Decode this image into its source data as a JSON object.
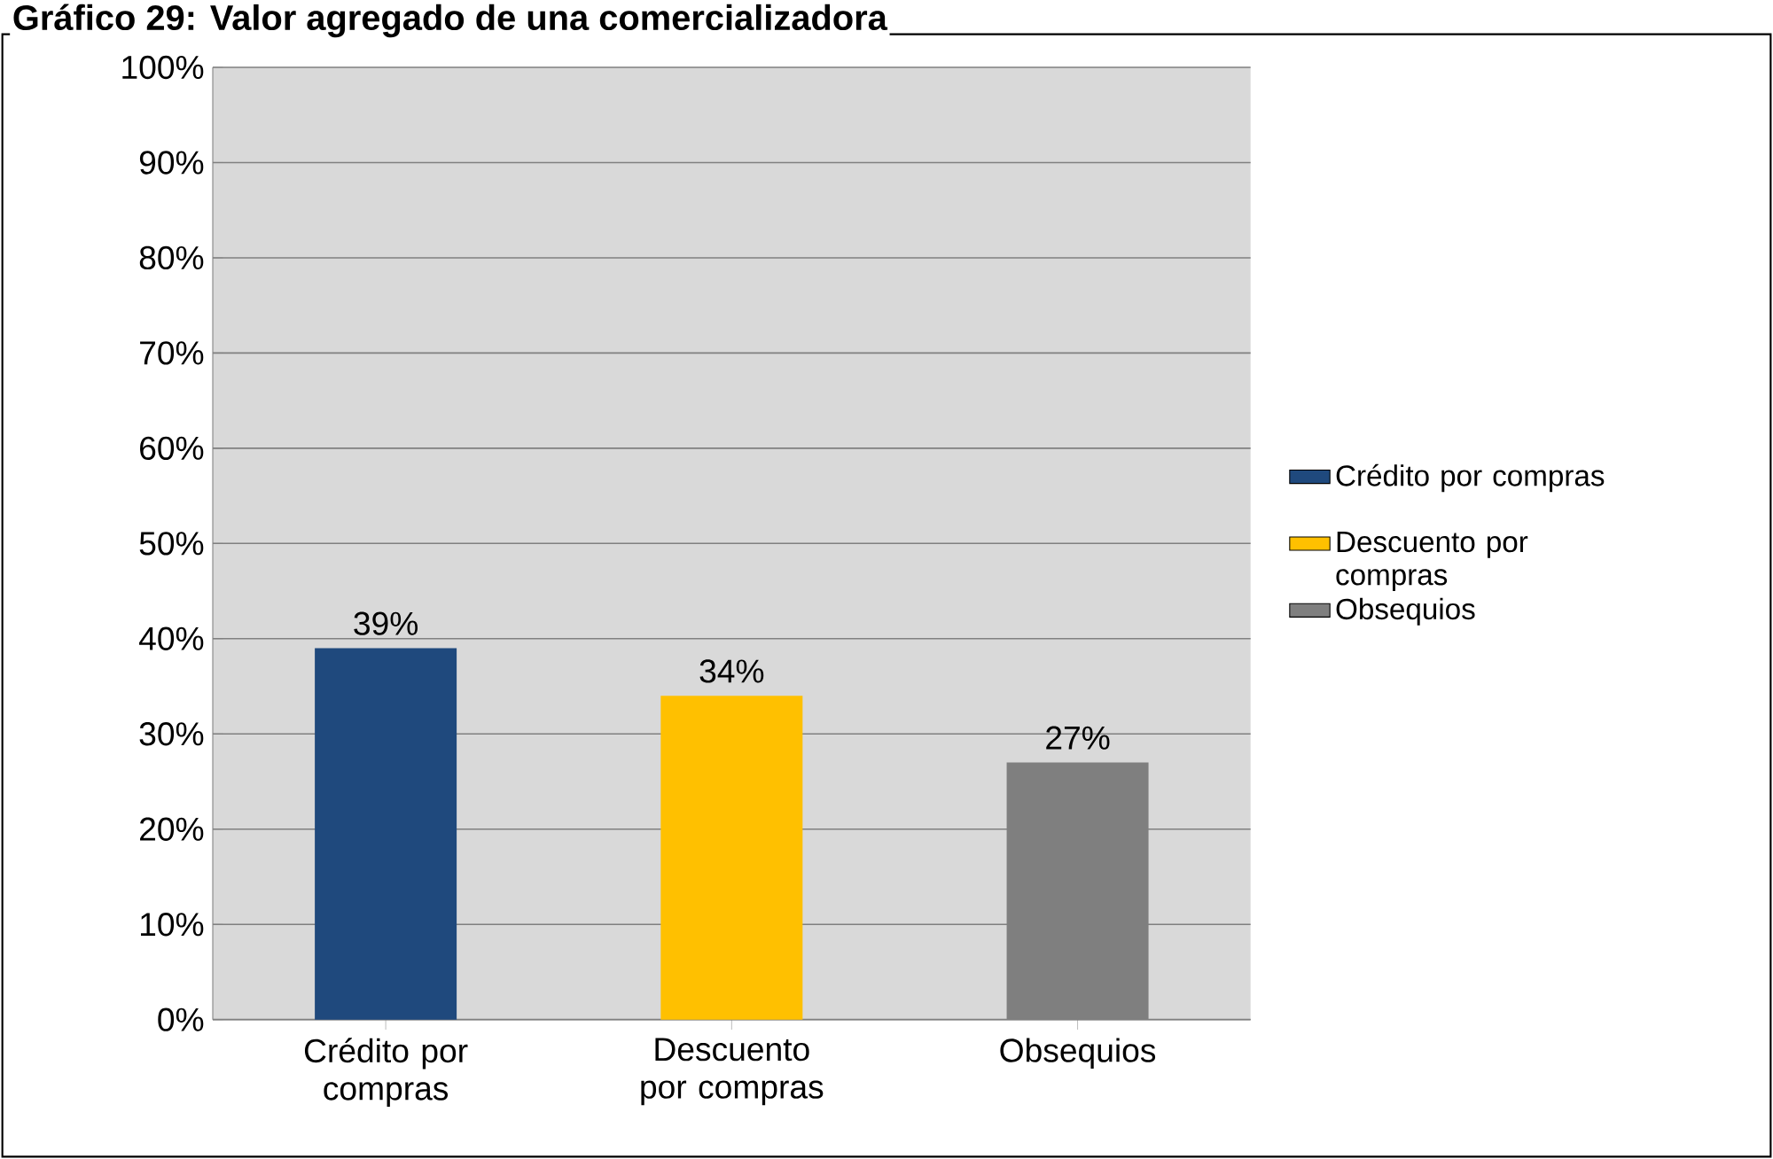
{
  "chart_data": {
    "type": "bar",
    "title": "Gráfico 29: Valor agregado de una comercializadora",
    "categories": [
      "Crédito por compras",
      "Descuento por compras",
      "Obsequios"
    ],
    "series": [
      {
        "name": "Crédito por compras",
        "color": "#1f497d",
        "values": [
          39,
          null,
          null
        ],
        "value_labels": [
          "39%",
          null,
          null
        ]
      },
      {
        "name": "Descuento por compras",
        "color": "#ffc000",
        "values": [
          null,
          34,
          null
        ],
        "value_labels": [
          null,
          "34%",
          null
        ]
      },
      {
        "name": "Obsequios",
        "color": "#7f7f7f",
        "values": [
          null,
          null,
          27
        ],
        "value_labels": [
          null,
          null,
          "27%"
        ]
      }
    ],
    "ylim": [
      0,
      100
    ],
    "yticks": [
      {
        "value": 0,
        "label": "0%"
      },
      {
        "value": 10,
        "label": "10%"
      },
      {
        "value": 20,
        "label": "20%"
      },
      {
        "value": 30,
        "label": "30%"
      },
      {
        "value": 40,
        "label": "40%"
      },
      {
        "value": 50,
        "label": "50%"
      },
      {
        "value": 60,
        "label": "60%"
      },
      {
        "value": 70,
        "label": "70%"
      },
      {
        "value": 80,
        "label": "80%"
      },
      {
        "value": 90,
        "label": "90%"
      },
      {
        "value": 100,
        "label": "100%"
      }
    ],
    "grid": "y",
    "legend": "right"
  }
}
